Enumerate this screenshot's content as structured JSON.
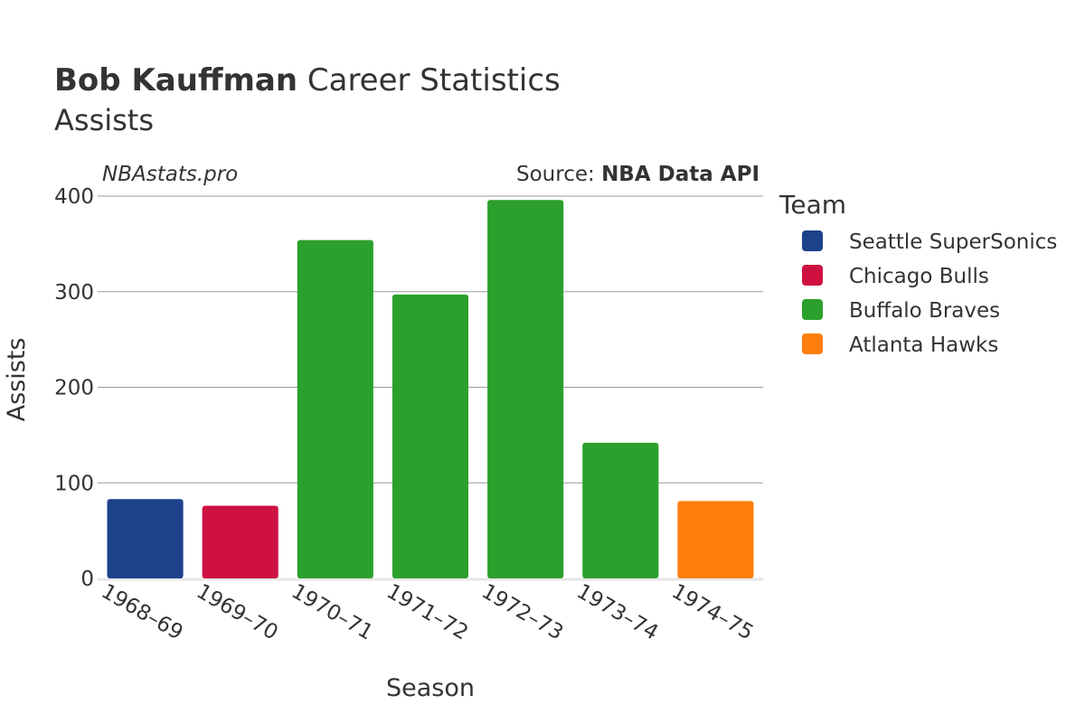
{
  "chart_data": {
    "type": "bar",
    "title_bold": "Bob Kauffman",
    "title_rest": " Career Statistics",
    "subtitle": "Assists",
    "watermark": "NBAstats.pro",
    "source_prefix": "Source: ",
    "source_name": "NBA Data API",
    "xlabel": "Season",
    "ylabel": "Assists",
    "ylim": [
      0,
      400
    ],
    "yticks": [
      0,
      100,
      200,
      300,
      400
    ],
    "grid": true,
    "legend_title": "Team",
    "legend_position": "right",
    "teams": [
      {
        "name": "Seattle SuperSonics",
        "color": "#1d428a"
      },
      {
        "name": "Chicago Bulls",
        "color": "#ce1141"
      },
      {
        "name": "Buffalo Braves",
        "color": "#2ca02c"
      },
      {
        "name": "Atlanta Hawks",
        "color": "#ff7f0e"
      }
    ],
    "categories": [
      "1968–69",
      "1969–70",
      "1970–71",
      "1971–72",
      "1972–73",
      "1973–74",
      "1974–75"
    ],
    "values": [
      83,
      76,
      354,
      297,
      396,
      142,
      81
    ],
    "bar_team": [
      "Seattle SuperSonics",
      "Chicago Bulls",
      "Buffalo Braves",
      "Buffalo Braves",
      "Buffalo Braves",
      "Buffalo Braves",
      "Atlanta Hawks"
    ]
  }
}
